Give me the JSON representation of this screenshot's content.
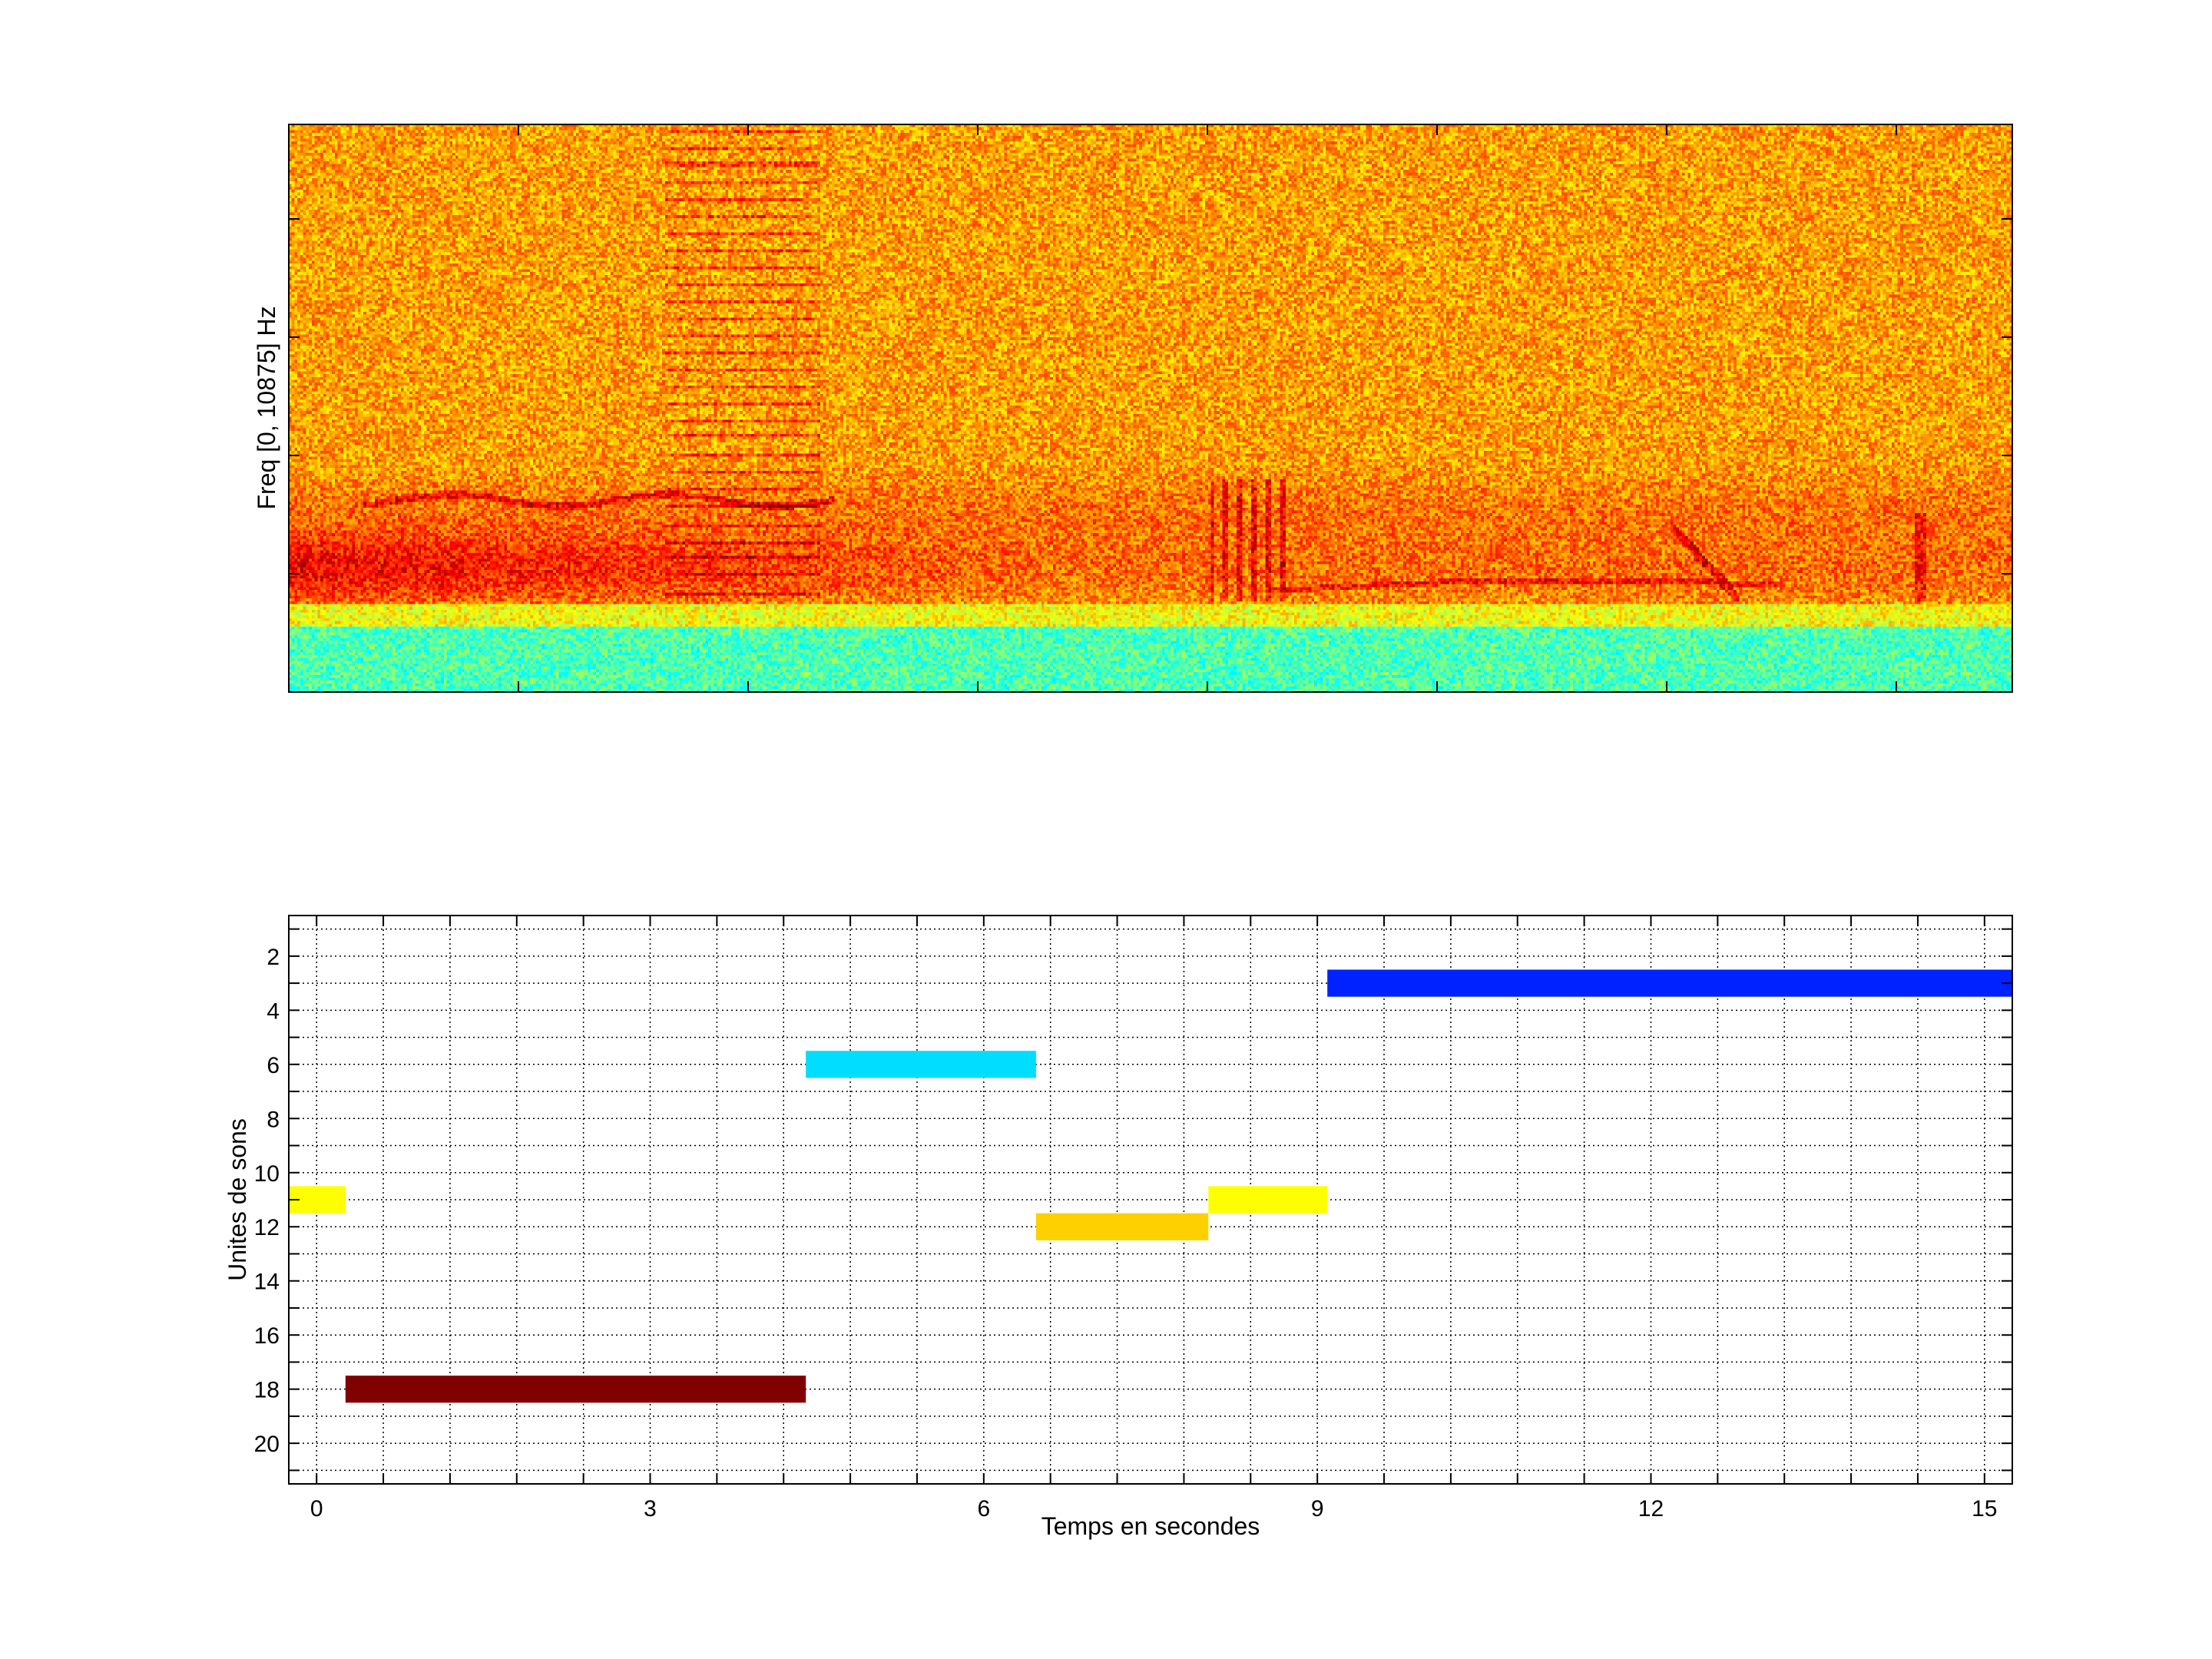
{
  "chart_data": [
    {
      "type": "heatmap",
      "kind": "spectrogram",
      "ylabel": "Freq [0, 10875] Hz",
      "xlabel": "",
      "colormap": "jet",
      "tick_labels": false
    },
    {
      "type": "bar",
      "orientation": "horizontal-segments",
      "xlabel": "Temps en secondes",
      "ylabel": "Unites de sons",
      "xlim": [
        -0.25,
        15.25
      ],
      "ylim": [
        0.5,
        21.5
      ],
      "y_reversed": true,
      "grid": true,
      "xticks": [
        0,
        3,
        6,
        9,
        12,
        15
      ],
      "yticks": [
        2,
        4,
        6,
        8,
        10,
        12,
        14,
        16,
        18,
        20
      ],
      "segments": [
        {
          "unit": 11,
          "start": -0.25,
          "end": 0.26,
          "color": "#FFFF00"
        },
        {
          "unit": 18,
          "start": 0.26,
          "end": 4.4,
          "color": "#800000"
        },
        {
          "unit": 6,
          "start": 4.4,
          "end": 6.47,
          "color": "#00DDFF"
        },
        {
          "unit": 12,
          "start": 6.47,
          "end": 8.02,
          "color": "#FFD000"
        },
        {
          "unit": 11,
          "start": 8.02,
          "end": 9.09,
          "color": "#FFFF00"
        },
        {
          "unit": 3,
          "start": 9.09,
          "end": 15.25,
          "color": "#0022FF"
        }
      ]
    }
  ]
}
